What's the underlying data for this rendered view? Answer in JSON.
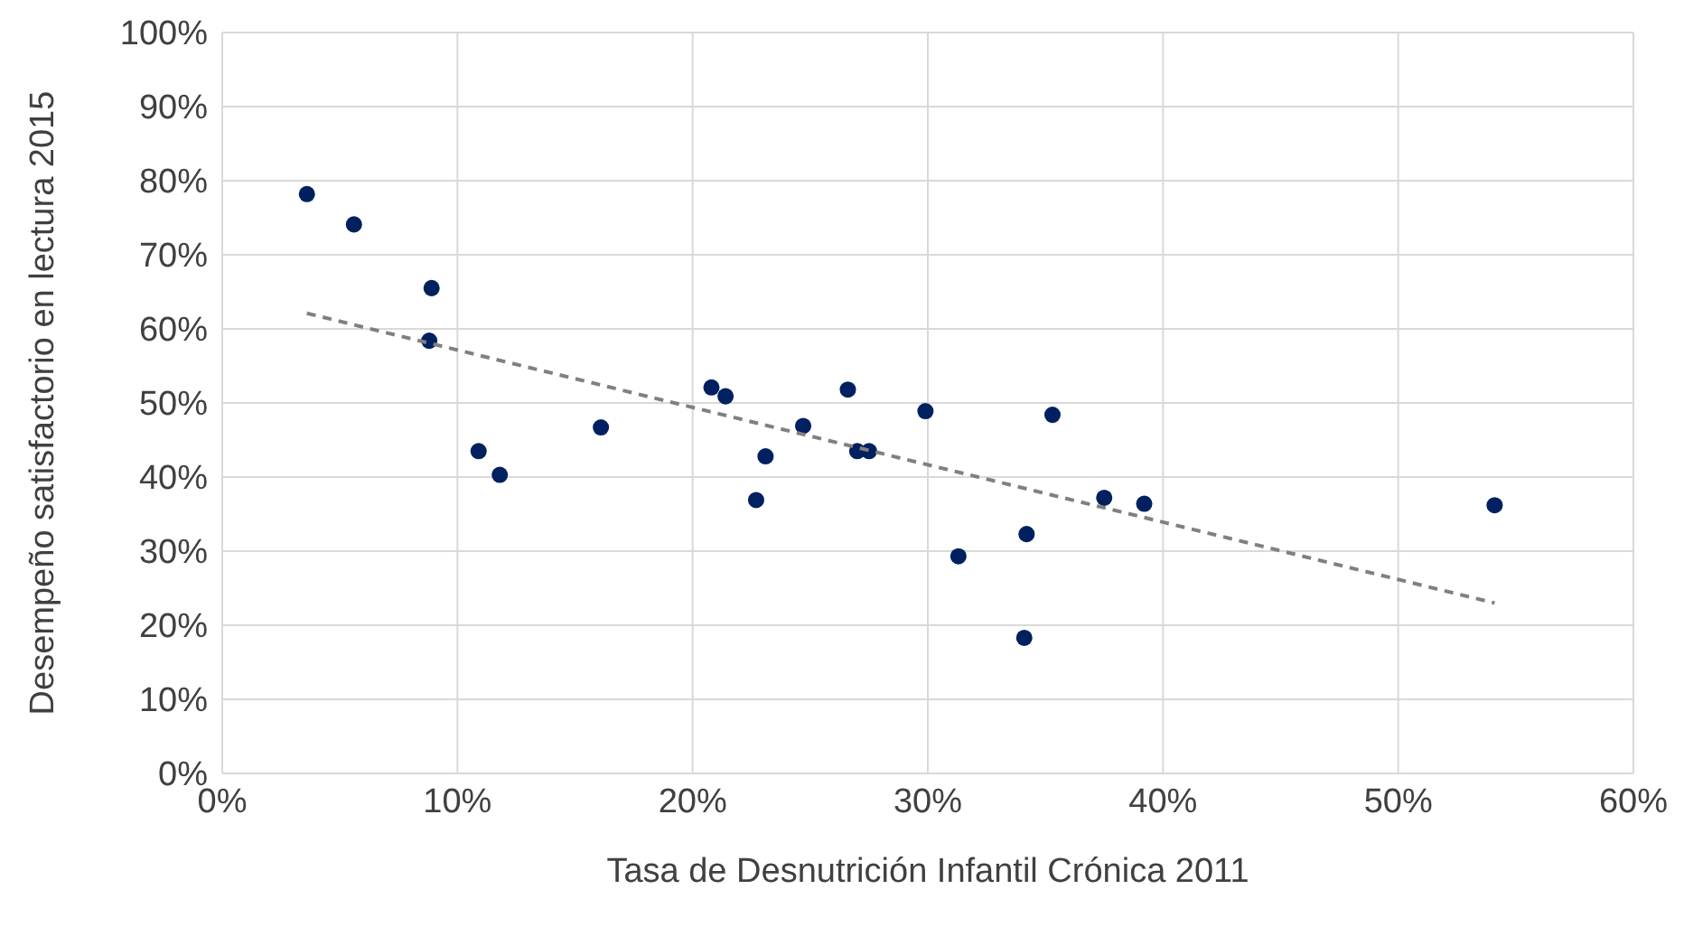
{
  "chart_data": {
    "type": "scatter",
    "xlabel": "Tasa de Desnutrición Infantil Crónica 2011",
    "ylabel": "Desempeño satisfactorio en lectura 2015",
    "xlim": [
      0,
      60
    ],
    "ylim": [
      0,
      100
    ],
    "xticks": [
      {
        "value": 0,
        "label": "0%"
      },
      {
        "value": 10,
        "label": "10%"
      },
      {
        "value": 20,
        "label": "20%"
      },
      {
        "value": 30,
        "label": "30%"
      },
      {
        "value": 40,
        "label": "40%"
      },
      {
        "value": 50,
        "label": "50%"
      },
      {
        "value": 60,
        "label": "60%"
      }
    ],
    "yticks": [
      {
        "value": 0,
        "label": "0%"
      },
      {
        "value": 10,
        "label": "10%"
      },
      {
        "value": 20,
        "label": "20%"
      },
      {
        "value": 30,
        "label": "30%"
      },
      {
        "value": 40,
        "label": "40%"
      },
      {
        "value": 50,
        "label": "50%"
      },
      {
        "value": 60,
        "label": "60%"
      },
      {
        "value": 70,
        "label": "70%"
      },
      {
        "value": 80,
        "label": "80%"
      },
      {
        "value": 90,
        "label": "90%"
      },
      {
        "value": 100,
        "label": "100%"
      }
    ],
    "grid": true,
    "legend": false,
    "series": [
      {
        "color": "#002060",
        "marker": "circle",
        "x": [
          3.6,
          5.6,
          8.9,
          8.8,
          10.9,
          11.8,
          16.1,
          20.8,
          21.4,
          23.1,
          22.7,
          24.7,
          26.6,
          27.0,
          27.5,
          29.9,
          31.3,
          34.2,
          34.1,
          35.3,
          37.5,
          39.2,
          54.1
        ],
        "values": [
          78.2,
          74.1,
          65.5,
          58.4,
          43.5,
          40.3,
          46.7,
          52.1,
          50.9,
          42.8,
          36.9,
          46.9,
          51.8,
          43.5,
          43.5,
          48.9,
          29.3,
          32.3,
          18.3,
          48.4,
          37.2,
          36.4,
          36.2
        ]
      },
      {
        "type": "line",
        "color": "#808080",
        "marker": "none",
        "line_style": "dashed",
        "x": [
          3.6,
          54.1
        ],
        "values": [
          62.1,
          23.0
        ]
      }
    ]
  }
}
